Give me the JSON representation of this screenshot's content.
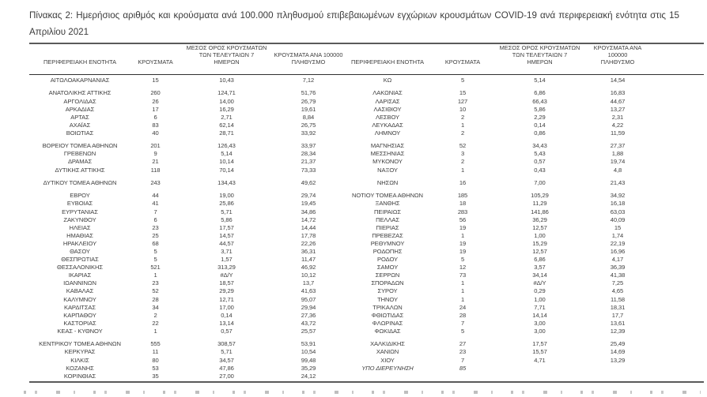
{
  "caption": "Πίνακας 2: Ημερήσιος αριθμός και κρούσματα ανά 100.000 πληθυσμού επιβεβαιωμένων εγχώριων κρουσμάτων COVID-19 ανά περιφερειακή ενότητα στις 15 Απριλίου 2021",
  "colors": {
    "text": "#3e3e3e",
    "thick_rule": "#5a5a5a",
    "header_underline": "#2e2e2e",
    "background": "#ffffff"
  },
  "table": {
    "headers": {
      "region": "ΠΕΡΙΦΕΡΕΙΑΚΗ ΕΝΟΤΗΤΑ",
      "cases": "ΚΡΟΥΣΜΑΤΑ",
      "avg7": "ΜΕΣΟΣ ΟΡΟΣ ΚΡΟΥΣΜΑΤΩΝ\nΤΩΝ ΤΕΛΕΥΤΑΙΩΝ 7\nΗΜΕΡΩΝ",
      "per100k": "ΚΡΟΥΣΜΑΤΑ ΑΝΑ 100000\nΠΛΗΘΥΣΜΟ"
    },
    "na_value": "#Δ/Υ",
    "left_rows": [
      [
        "ΑΙΤΩΛΟΑΚΑΡΝΑΝΙΑΣ",
        "15",
        "10,43",
        "7,12"
      ],
      null,
      [
        "ΑΝΑΤΟΛΙΚΗΣ ΑΤΤΙΚΗΣ",
        "260",
        "124,71",
        "51,76"
      ],
      [
        "ΑΡΓΟΛΙΔΑΣ",
        "26",
        "14,00",
        "26,79"
      ],
      [
        "ΑΡΚΑΔΙΑΣ",
        "17",
        "16,29",
        "19,61"
      ],
      [
        "ΑΡΤΑΣ",
        "6",
        "2,71",
        "8,84"
      ],
      [
        "ΑΧΑΪΑΣ",
        "83",
        "62,14",
        "26,75"
      ],
      [
        "ΒΟΙΩΤΙΑΣ",
        "40",
        "28,71",
        "33,92"
      ],
      null,
      [
        "ΒΟΡΕΙΟΥ ΤΟΜΕΑ ΑΘΗΝΩΝ",
        "201",
        "126,43",
        "33,97"
      ],
      [
        "ΓΡΕΒΕΝΩΝ",
        "9",
        "5,14",
        "28,34"
      ],
      [
        "ΔΡΑΜΑΣ",
        "21",
        "10,14",
        "21,37"
      ],
      [
        "ΔΥΤΙΚΗΣ ΑΤΤΙΚΗΣ",
        "118",
        "70,14",
        "73,33"
      ],
      null,
      [
        "ΔΥΤΙΚΟΥ ΤΟΜΕΑ ΑΘΗΝΩΝ",
        "243",
        "134,43",
        "49,62"
      ],
      null,
      [
        "ΕΒΡΟΥ",
        "44",
        "19,00",
        "29,74"
      ],
      [
        "ΕΥΒΟΙΑΣ",
        "41",
        "25,86",
        "19,45"
      ],
      [
        "ΕΥΡΥΤΑΝΙΑΣ",
        "7",
        "5,71",
        "34,86"
      ],
      [
        "ΖΑΚΥΝΘΟΥ",
        "6",
        "5,86",
        "14,72"
      ],
      [
        "ΗΛΕΙΑΣ",
        "23",
        "17,57",
        "14,44"
      ],
      [
        "ΗΜΑΘΙΑΣ",
        "25",
        "14,57",
        "17,78"
      ],
      [
        "ΗΡΑΚΛΕΙΟΥ",
        "68",
        "44,57",
        "22,26"
      ],
      [
        "ΘΑΣΟΥ",
        "5",
        "3,71",
        "36,31"
      ],
      [
        "ΘΕΣΠΡΩΤΙΑΣ",
        "5",
        "1,57",
        "11,47"
      ],
      [
        "ΘΕΣΣΑΛΟΝΙΚΗΣ",
        "521",
        "313,29",
        "46,92"
      ],
      [
        "ΙΚΑΡΙΑΣ",
        "1",
        "#Δ/Υ",
        "10,12"
      ],
      [
        "ΙΩΑΝΝΙΝΩΝ",
        "23",
        "18,57",
        "13,7"
      ],
      [
        "ΚΑΒΑΛΑΣ",
        "52",
        "29,29",
        "41,63"
      ],
      [
        "ΚΑΛΥΜΝΟΥ",
        "28",
        "12,71",
        "95,07"
      ],
      [
        "ΚΑΡΔΙΤΣΑΣ",
        "34",
        "17,00",
        "29,94"
      ],
      [
        "ΚΑΡΠΑΘΟΥ",
        "2",
        "0,14",
        "27,36"
      ],
      [
        "ΚΑΣΤΟΡΙΑΣ",
        "22",
        "13,14",
        "43,72"
      ],
      [
        "ΚΕΑΣ - ΚΥΘΝΟΥ",
        "1",
        "0,57",
        "25,57"
      ],
      null,
      [
        "ΚΕΝΤΡΙΚΟΥ ΤΟΜΕΑ ΑΘΗΝΩΝ",
        "555",
        "308,57",
        "53,91"
      ],
      [
        "ΚΕΡΚΥΡΑΣ",
        "11",
        "5,71",
        "10,54"
      ],
      [
        "ΚΙΛΚΙΣ",
        "80",
        "34,57",
        "99,48"
      ],
      [
        "ΚΟΖΑΝΗΣ",
        "53",
        "47,86",
        "35,29"
      ],
      [
        "ΚΟΡΙΝΘΙΑΣ",
        "35",
        "27,00",
        "24,12"
      ]
    ],
    "right_rows": [
      [
        "ΚΩ",
        "5",
        "5,14",
        "14,54"
      ],
      null,
      [
        "ΛΑΚΩΝΙΑΣ",
        "15",
        "6,86",
        "16,83"
      ],
      [
        "ΛΑΡΙΣΑΣ",
        "127",
        "66,43",
        "44,67"
      ],
      [
        "ΛΑΣΙΘΙΟΥ",
        "10",
        "5,86",
        "13,27"
      ],
      [
        "ΛΕΣΒΟΥ",
        "2",
        "2,29",
        "2,31"
      ],
      [
        "ΛΕΥΚΑΔΑΣ",
        "1",
        "0,14",
        "4,22"
      ],
      [
        "ΛΗΜΝΟΥ",
        "2",
        "0,86",
        "11,59"
      ],
      null,
      [
        "ΜΑΓΝΗΣΙΑΣ",
        "52",
        "34,43",
        "27,37"
      ],
      [
        "ΜΕΣΣΗΝΙΑΣ",
        "3",
        "5,43",
        "1,88"
      ],
      [
        "ΜΥΚΟΝΟΥ",
        "2",
        "0,57",
        "19,74"
      ],
      [
        "ΝΑΞΟΥ",
        "1",
        "0,43",
        "4,8"
      ],
      null,
      [
        "ΝΗΣΩΝ",
        "16",
        "7,00",
        "21,43"
      ],
      null,
      [
        "ΝΟΤΙΟΥ ΤΟΜΕΑ ΑΘΗΝΩΝ",
        "185",
        "105,29",
        "34,92"
      ],
      [
        "ΞΑΝΘΗΣ",
        "18",
        "11,29",
        "16,18"
      ],
      [
        "ΠΕΙΡΑΙΩΣ",
        "283",
        "141,86",
        "63,03"
      ],
      [
        "ΠΕΛΛΑΣ",
        "56",
        "36,29",
        "40,09"
      ],
      [
        "ΠΙΕΡΙΑΣ",
        "19",
        "12,57",
        "15"
      ],
      [
        "ΠΡΕΒΕΖΑΣ",
        "1",
        "1,00",
        "1,74"
      ],
      [
        "ΡΕΘΥΜΝΟΥ",
        "19",
        "15,29",
        "22,19"
      ],
      [
        "ΡΟΔΟΠΗΣ",
        "19",
        "12,57",
        "16,96"
      ],
      [
        "ΡΟΔΟΥ",
        "5",
        "6,86",
        "4,17"
      ],
      [
        "ΣΑΜΟΥ",
        "12",
        "3,57",
        "36,39"
      ],
      [
        "ΣΕΡΡΩΝ",
        "73",
        "34,14",
        "41,38"
      ],
      [
        "ΣΠΟΡΑΔΩΝ",
        "1",
        "#Δ/Υ",
        "7,25"
      ],
      [
        "ΣΥΡΟΥ",
        "1",
        "0,29",
        "4,65"
      ],
      [
        "ΤΗΝΟΥ",
        "1",
        "1,00",
        "11,58"
      ],
      [
        "ΤΡΙΚΑΛΩΝ",
        "24",
        "7,71",
        "18,31"
      ],
      [
        "ΦΘΙΩΤΙΔΑΣ",
        "28",
        "14,14",
        "17,7"
      ],
      [
        "ΦΛΩΡΙΝΑΣ",
        "7",
        "3,00",
        "13,61"
      ],
      [
        "ΦΩΚΙΔΑΣ",
        "5",
        "3,00",
        "12,39"
      ],
      null,
      [
        "ΧΑΛΚΙΔΙΚΗΣ",
        "27",
        "17,57",
        "25,49"
      ],
      [
        "ΧΑΝΙΩΝ",
        "23",
        "15,57",
        "14,69"
      ],
      [
        "ΧΙΟΥ",
        "7",
        "4,71",
        "13,29"
      ],
      {
        "cells": [
          "ΥΠΟ ΔΙΕΡΕΥΝΗΣΗ",
          "85",
          "",
          ""
        ],
        "style": "italic"
      }
    ]
  }
}
